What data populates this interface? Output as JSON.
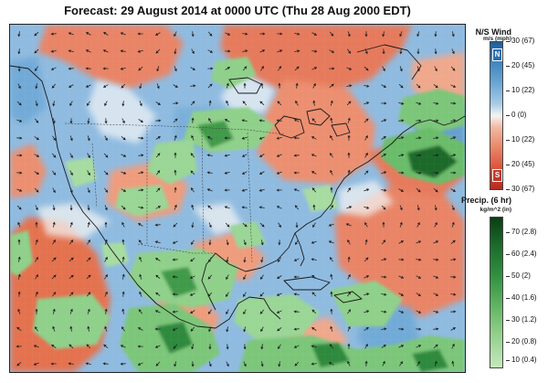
{
  "title": "Forecast: 29 August 2014 at 0000 UTC (Thu 28 Aug 2000 EDT)",
  "map": {
    "region": "Western Hemisphere – North America, Gulf of Mexico, Caribbean, eastern Pacific",
    "layers": [
      "N/S wind shading",
      "wind direction arrows",
      "6-hr precipitation shading",
      "coastlines and borders"
    ]
  },
  "wind_legend": {
    "title": "N/S Wind",
    "units": "m/s (mph)",
    "north_badge": "N",
    "south_badge": "S",
    "ticks": [
      "30 (67)",
      "20 (45)",
      "10 (22)",
      "0 (0)",
      "10 (22)",
      "20 (45)",
      "30 (67)"
    ],
    "colors": {
      "north": "#2a6fb0",
      "zero": "#f4f4f4",
      "south": "#c0392b"
    }
  },
  "precip_legend": {
    "title": "Precip. (6 hr)",
    "units": "kg/m^2 (in)",
    "ticks": [
      "70 (2.8)",
      "60 (2.4)",
      "50 (2)",
      "40 (1.6)",
      "30 (1.2)",
      "20 (0.8)",
      "10 (0.4)"
    ],
    "colors": {
      "max": "#0a3d14",
      "min": "#c4e8bd"
    }
  }
}
